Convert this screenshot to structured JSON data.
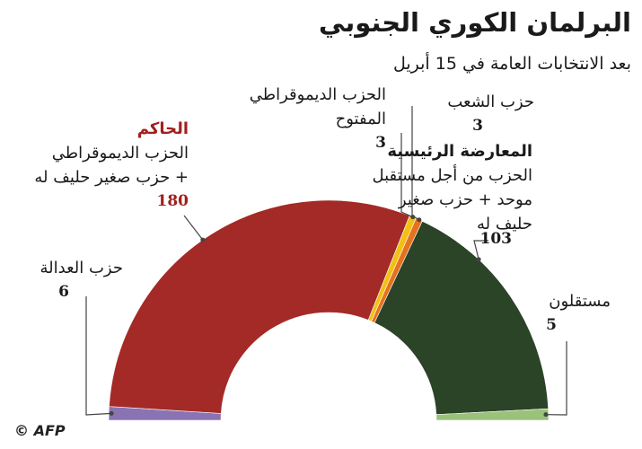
{
  "title": "البرلمان الكوري الجنوبي",
  "subtitle": "بعد الانتخابات العامة في 15 أبريل",
  "footer": {
    "copyright": "©",
    "logo": "AFP"
  },
  "colors": {
    "ruling": "#a32a26",
    "justice": "#8a73b3",
    "open_democratic": "#f2c014",
    "peoples": "#e5721f",
    "opposition": "#2b4327",
    "independents": "#9ac27a",
    "leader_line": "#444444"
  },
  "groups": {
    "ruling": {
      "heading": "الحاكم",
      "lines": [
        "الحزب الديموقراطي",
        "+ حزب صغير حليف له"
      ],
      "value": "180"
    },
    "justice": {
      "lines": [
        "حزب العدالة"
      ],
      "value": "6"
    },
    "open_democratic": {
      "lines": [
        "الحزب الديموقراطي",
        "المفتوح"
      ],
      "value": "3"
    },
    "peoples": {
      "lines": [
        "حزب الشعب"
      ],
      "value": "3"
    },
    "opposition": {
      "heading": "المعارضة الرئيسية",
      "lines": [
        "الحزب من أجل مستقبل",
        "موحد + حزب صغير",
        "حليف له"
      ],
      "value": "103"
    },
    "independents": {
      "lines": [
        "مستقلون"
      ],
      "value": "5"
    }
  },
  "chart_data": {
    "type": "pie",
    "shape": "half-donut",
    "title": "البرلمان الكوري الجنوبي",
    "subtitle": "بعد الانتخابات العامة في 15 أبريل",
    "total": 300,
    "slices": [
      {
        "label": "حزب العدالة",
        "value": 6,
        "color": "#8a73b3"
      },
      {
        "label": "الحزب الديموقراطي + حزب صغير حليف له",
        "value": 180,
        "color": "#a32a26"
      },
      {
        "label": "الحزب الديموقراطي المفتوح",
        "value": 3,
        "color": "#f2c014"
      },
      {
        "label": "حزب الشعب",
        "value": 3,
        "color": "#e5721f"
      },
      {
        "label": "الحزب من أجل مستقبل موحد + حزب صغير حليف له",
        "value": 103,
        "color": "#2b4327"
      },
      {
        "label": "مستقلون",
        "value": 5,
        "color": "#9ac27a"
      }
    ]
  }
}
